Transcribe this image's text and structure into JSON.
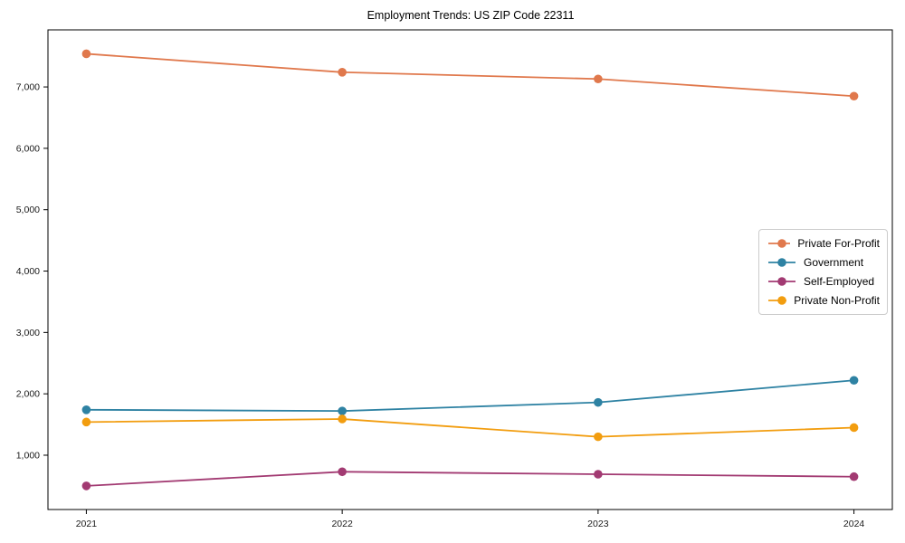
{
  "chart_data": {
    "type": "line",
    "title": "Employment Trends: US ZIP Code 22311",
    "x": [
      "2021",
      "2022",
      "2023",
      "2024"
    ],
    "xlabel": "",
    "ylabel": "",
    "ylim": [
      115,
      7930
    ],
    "yticks": [
      1000,
      2000,
      3000,
      4000,
      5000,
      6000,
      7000
    ],
    "ytick_labels": [
      "1,000",
      "2,000",
      "3,000",
      "4,000",
      "5,000",
      "6,000",
      "7,000"
    ],
    "grid": false,
    "legend_position": "center-right",
    "marker": "circle",
    "series": [
      {
        "name": "Private For-Profit",
        "color": "#e0784c",
        "values": [
          7540,
          7240,
          7130,
          6850
        ]
      },
      {
        "name": "Government",
        "color": "#2e82a3",
        "values": [
          1740,
          1720,
          1860,
          2220
        ]
      },
      {
        "name": "Self-Employed",
        "color": "#a23a72",
        "values": [
          500,
          730,
          690,
          650
        ]
      },
      {
        "name": "Private Non-Profit",
        "color": "#f29d0f",
        "values": [
          1540,
          1590,
          1300,
          1450
        ]
      }
    ],
    "spine_color": "#000000"
  }
}
